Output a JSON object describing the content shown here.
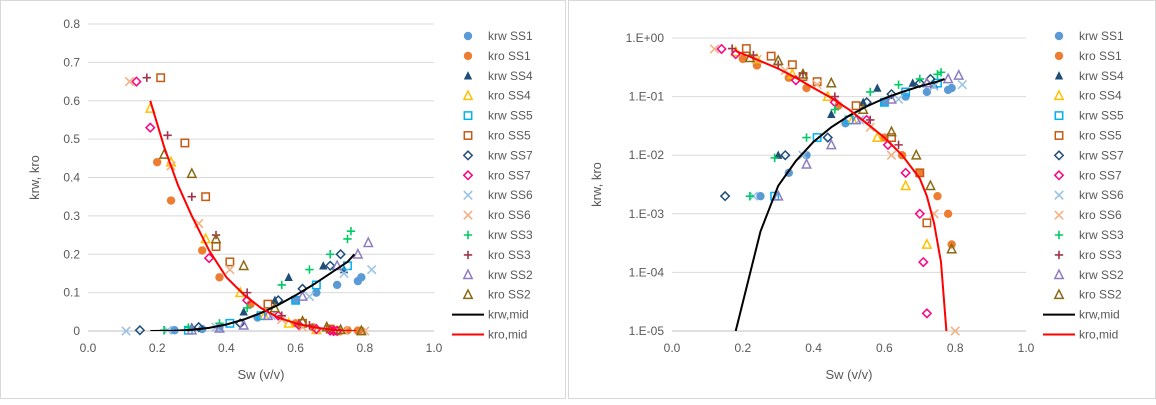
{
  "colors": {
    "blue": "#5b9bd5",
    "orange": "#ed7d31",
    "navy": "#1f4e79",
    "cyan": "#00b0f0",
    "brown": "#c55a11",
    "magenta": "#ff0080",
    "lightblue": "#9dc3e6",
    "peach": "#f4b183",
    "green": "#00cc66",
    "maroon": "#a0344a",
    "purple": "#8e7cc3",
    "olive": "#8b6914",
    "black": "#000000",
    "red": "#ff0000",
    "yellow": "#ffc000"
  },
  "legend": [
    {
      "label": "krw SS1",
      "marker": "circle",
      "color": "blue"
    },
    {
      "label": "kro SS1",
      "marker": "circle",
      "color": "orange"
    },
    {
      "label": "krw SS4",
      "marker": "triangle",
      "color": "navy"
    },
    {
      "label": "kro SS4",
      "marker": "triangle-open",
      "color": "yellow"
    },
    {
      "label": "krw SS5",
      "marker": "square-open",
      "color": "cyan"
    },
    {
      "label": "kro SS5",
      "marker": "square-open",
      "color": "brown"
    },
    {
      "label": "krw SS7",
      "marker": "diamond-open",
      "color": "navy"
    },
    {
      "label": "kro SS7",
      "marker": "diamond-open",
      "color": "magenta"
    },
    {
      "label": "krw SS6",
      "marker": "x",
      "color": "lightblue"
    },
    {
      "label": "kro SS6",
      "marker": "x",
      "color": "peach"
    },
    {
      "label": "krw SS3",
      "marker": "plus",
      "color": "green"
    },
    {
      "label": "kro SS3",
      "marker": "plus",
      "color": "maroon"
    },
    {
      "label": "krw SS2",
      "marker": "triangle-open",
      "color": "purple"
    },
    {
      "label": "kro SS2",
      "marker": "triangle-open",
      "color": "olive"
    },
    {
      "label": "krw,mid",
      "marker": "line",
      "color": "black"
    },
    {
      "label": "kro,mid",
      "marker": "line",
      "color": "red"
    }
  ],
  "chart_data": [
    {
      "type": "scatter",
      "xlabel": "Sw (v/v)",
      "ylabel": "krw, kro",
      "xlim": [
        0,
        1.0
      ],
      "ylim": [
        0,
        0.8
      ],
      "yscale": "linear",
      "x_ticks": [
        "0.0",
        "0.2",
        "0.4",
        "0.6",
        "0.8",
        "1.0"
      ],
      "y_ticks": [
        "0",
        "0.1",
        "0.2",
        "0.3",
        "0.4",
        "0.5",
        "0.6",
        "0.7",
        "0.8"
      ],
      "grid": "horizontal",
      "legend_position": "right",
      "series": [
        {
          "name": "krw SS1",
          "x": [
            0.25,
            0.33,
            0.38,
            0.49,
            0.6,
            0.66,
            0.72,
            0.78,
            0.79
          ],
          "y": [
            0.002,
            0.005,
            0.01,
            0.035,
            0.08,
            0.1,
            0.12,
            0.13,
            0.14
          ]
        },
        {
          "name": "kro SS1",
          "x": [
            0.2,
            0.24,
            0.33,
            0.38,
            0.47,
            0.6,
            0.65,
            0.7,
            0.75,
            0.78,
            0.79
          ],
          "y": [
            0.44,
            0.34,
            0.21,
            0.14,
            0.07,
            0.02,
            0.01,
            0.005,
            0.002,
            0.001,
            0.0003
          ]
        },
        {
          "name": "krw SS4",
          "x": [
            0.3,
            0.45,
            0.54,
            0.58,
            0.68,
            0.74
          ],
          "y": [
            0.01,
            0.05,
            0.08,
            0.14,
            0.17,
            0.16
          ]
        },
        {
          "name": "kro SS4",
          "x": [
            0.18,
            0.24,
            0.34,
            0.44,
            0.51,
            0.58,
            0.66,
            0.72
          ],
          "y": [
            0.58,
            0.44,
            0.24,
            0.1,
            0.04,
            0.02,
            0.003,
            0.0003
          ]
        },
        {
          "name": "krw SS5",
          "x": [
            0.29,
            0.41,
            0.5,
            0.6,
            0.66,
            0.75
          ],
          "y": [
            0.002,
            0.02,
            0.04,
            0.08,
            0.12,
            0.17
          ]
        },
        {
          "name": "kro SS5",
          "x": [
            0.21,
            0.28,
            0.34,
            0.37,
            0.41,
            0.52,
            0.62,
            0.7,
            0.72
          ],
          "y": [
            0.66,
            0.49,
            0.35,
            0.22,
            0.18,
            0.07,
            0.02,
            0.005,
            0.0007
          ]
        },
        {
          "name": "krw SS7",
          "x": [
            0.15,
            0.32,
            0.44,
            0.55,
            0.62,
            0.7,
            0.73
          ],
          "y": [
            0.002,
            0.01,
            0.02,
            0.08,
            0.11,
            0.17,
            0.2
          ]
        },
        {
          "name": "kro SS7",
          "x": [
            0.14,
            0.18,
            0.35,
            0.46,
            0.55,
            0.61,
            0.66,
            0.7,
            0.71,
            0.72
          ],
          "y": [
            0.65,
            0.53,
            0.19,
            0.08,
            0.04,
            0.015,
            0.005,
            0.001,
            0.00015,
            2e-05
          ]
        },
        {
          "name": "krw SS6",
          "x": [
            0.11,
            0.23,
            0.37,
            0.53,
            0.64,
            0.74,
            0.82
          ],
          "y": [
            0.0,
            0.002,
            0.01,
            0.04,
            0.09,
            0.15,
            0.16
          ]
        },
        {
          "name": "kro SS6",
          "x": [
            0.12,
            0.24,
            0.32,
            0.41,
            0.56,
            0.62,
            0.74,
            0.8
          ],
          "y": [
            0.65,
            0.43,
            0.28,
            0.16,
            0.03,
            0.01,
            0.001,
            1e-05
          ]
        },
        {
          "name": "krw SS3",
          "x": [
            0.22,
            0.29,
            0.38,
            0.46,
            0.56,
            0.64,
            0.7,
            0.75,
            0.76
          ],
          "y": [
            0.002,
            0.009,
            0.02,
            0.06,
            0.12,
            0.16,
            0.2,
            0.24,
            0.26
          ]
        },
        {
          "name": "kro SS3",
          "x": [
            0.17,
            0.23,
            0.3,
            0.37,
            0.46,
            0.56,
            0.64
          ],
          "y": [
            0.66,
            0.51,
            0.35,
            0.25,
            0.1,
            0.04,
            0.015
          ]
        },
        {
          "name": "krw SS2",
          "x": [
            0.3,
            0.38,
            0.45,
            0.52,
            0.62,
            0.72,
            0.78,
            0.81
          ],
          "y": [
            0.002,
            0.007,
            0.015,
            0.04,
            0.09,
            0.17,
            0.2,
            0.23
          ]
        },
        {
          "name": "kro SS2",
          "x": [
            0.22,
            0.3,
            0.37,
            0.45,
            0.54,
            0.62,
            0.69,
            0.73,
            0.79
          ],
          "y": [
            0.46,
            0.41,
            0.24,
            0.17,
            0.06,
            0.025,
            0.01,
            0.003,
            0.00025
          ]
        },
        {
          "name": "krw,mid",
          "x": [
            0.18,
            0.25,
            0.3,
            0.35,
            0.4,
            0.45,
            0.5,
            0.55,
            0.6,
            0.65,
            0.7,
            0.75,
            0.77
          ],
          "y": [
            0.0,
            0.0005,
            0.003,
            0.008,
            0.017,
            0.03,
            0.047,
            0.068,
            0.093,
            0.12,
            0.15,
            0.18,
            0.2
          ]
        },
        {
          "name": "kro,mid",
          "x": [
            0.18,
            0.22,
            0.26,
            0.3,
            0.35,
            0.4,
            0.45,
            0.5,
            0.55,
            0.6,
            0.65,
            0.7,
            0.72,
            0.74,
            0.76,
            0.775
          ],
          "y": [
            0.6,
            0.48,
            0.38,
            0.3,
            0.21,
            0.14,
            0.095,
            0.06,
            0.035,
            0.02,
            0.01,
            0.004,
            0.002,
            0.0007,
            0.00015,
            1e-05
          ]
        }
      ]
    },
    {
      "type": "scatter",
      "xlabel": "Sw (v/v)",
      "ylabel": "krw, kro",
      "xlim": [
        0,
        1.0
      ],
      "ylim": [
        1e-05,
        1
      ],
      "yscale": "log",
      "x_ticks": [
        "0.0",
        "0.2",
        "0.4",
        "0.6",
        "0.8",
        "1.0"
      ],
      "y_ticks": [
        "1.E-05",
        "1.E-04",
        "1.E-03",
        "1.E-02",
        "1.E-01",
        "1.E+00"
      ],
      "grid": "horizontal",
      "legend_position": "right",
      "series_ref": "same as first chart"
    }
  ]
}
